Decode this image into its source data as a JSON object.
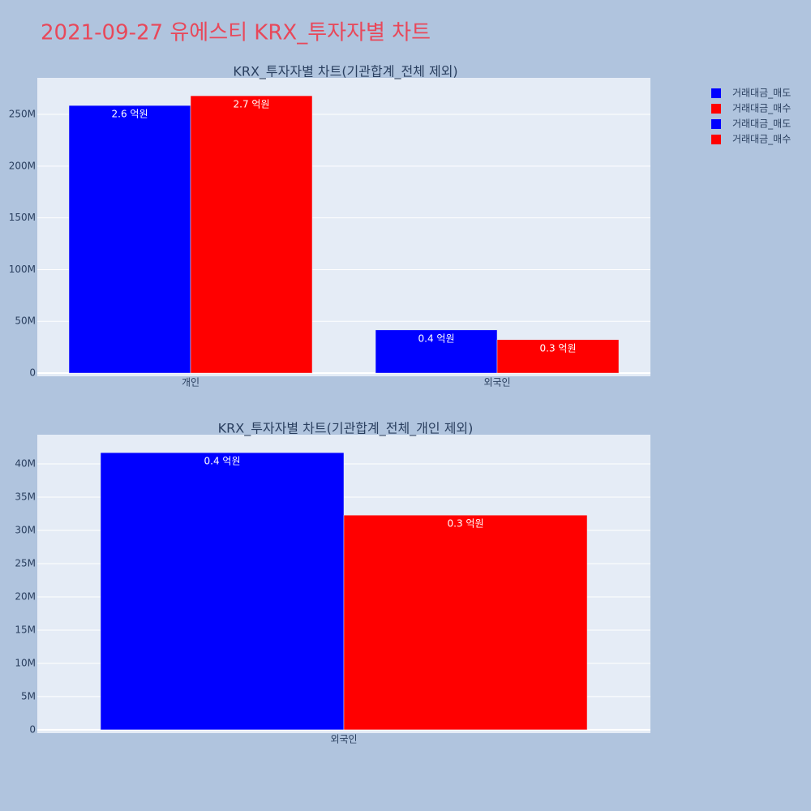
{
  "title": "2021-09-27 유에스티 KRX_투자자별 차트",
  "chart_data": [
    {
      "type": "bar",
      "title": "KRX_투자자별 차트(기관합계_전체 제외)",
      "categories": [
        "개인",
        "외국인"
      ],
      "series": [
        {
          "name": "거래대금_매도",
          "color": "#0000ff",
          "values": [
            258600000,
            41700000
          ],
          "value_labels": [
            "2.6 억원",
            "0.4 억원"
          ]
        },
        {
          "name": "거래대금_매수",
          "color": "#ff0000",
          "values": [
            268000000,
            32300000
          ],
          "value_labels": [
            "2.7 억원",
            "0.3 억원"
          ]
        }
      ],
      "ylim": [
        -3100000,
        285300000
      ],
      "yticks": [
        0,
        {
          "value": 50000000,
          "label": "50M"
        },
        {
          "value": 100000000,
          "label": "100M"
        },
        {
          "value": 150000000,
          "label": "150M"
        },
        {
          "value": 200000000,
          "label": "200M"
        },
        {
          "value": 250000000,
          "label": "250M"
        }
      ],
      "grid": true
    },
    {
      "type": "bar",
      "title": "KRX_투자자별 차트(기관합계_전체_개인 제외)",
      "categories": [
        "외국인"
      ],
      "series": [
        {
          "name": "거래대금_매도",
          "color": "#0000ff",
          "values": [
            41700000
          ],
          "value_labels": [
            "0.4 억원"
          ]
        },
        {
          "name": "거래대금_매수",
          "color": "#ff0000",
          "values": [
            32300000
          ],
          "value_labels": [
            "0.3 억원"
          ]
        }
      ],
      "ylim": [
        -500000,
        44400000
      ],
      "yticks": [
        0,
        {
          "value": 5000000,
          "label": "5M"
        },
        {
          "value": 10000000,
          "label": "10M"
        },
        {
          "value": 15000000,
          "label": "15M"
        },
        {
          "value": 20000000,
          "label": "20M"
        },
        {
          "value": 25000000,
          "label": "25M"
        },
        {
          "value": 30000000,
          "label": "30M"
        },
        {
          "value": 35000000,
          "label": "35M"
        },
        {
          "value": 40000000,
          "label": "40M"
        }
      ],
      "grid": true
    }
  ]
}
